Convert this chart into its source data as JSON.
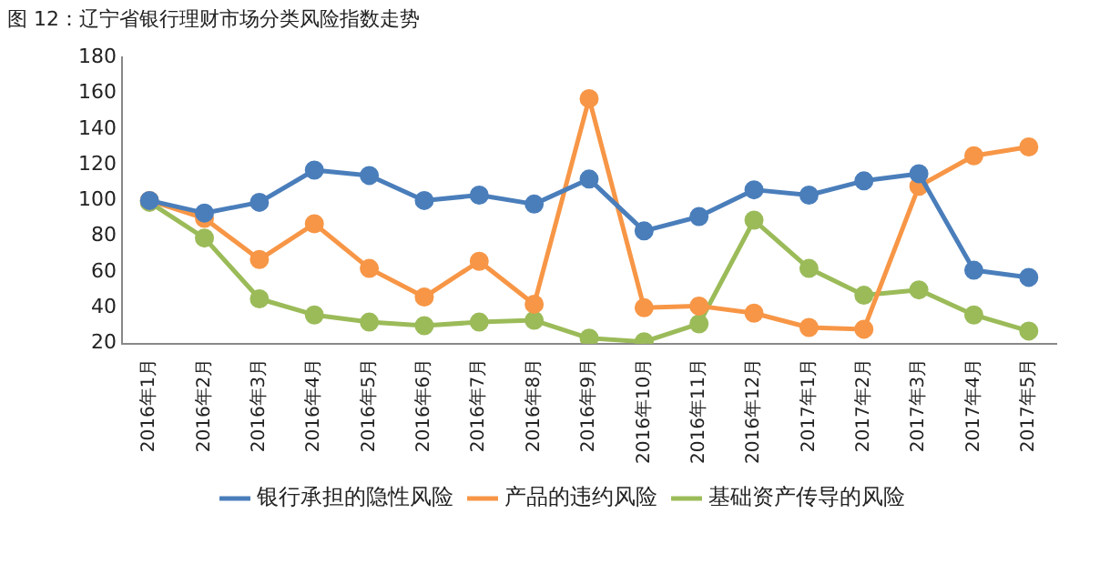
{
  "chart_data": {
    "type": "line",
    "title": "图 12：辽宁省银行理财市场分类风险指数走势",
    "categories": [
      "2016年1月",
      "2016年2月",
      "2016年3月",
      "2016年4月",
      "2016年5月",
      "2016年6月",
      "2016年7月",
      "2016年8月",
      "2016年9月",
      "2016年10月",
      "2016年11月",
      "2016年12月",
      "2017年1月",
      "2017年2月",
      "2017年3月",
      "2017年4月",
      "2017年5月"
    ],
    "series": [
      {
        "name": "银行承担的隐性风险",
        "color": "#4a7ebb",
        "values": [
          100,
          93,
          99,
          117,
          114,
          100,
          103,
          98,
          112,
          83,
          91,
          106,
          103,
          111,
          115,
          61,
          57
        ]
      },
      {
        "name": "产品的违约风险",
        "color": "#f79646",
        "values": [
          100,
          90,
          67,
          87,
          62,
          46,
          66,
          42,
          157,
          40,
          41,
          37,
          29,
          28,
          108,
          125,
          130
        ]
      },
      {
        "name": "基础资产传导的风险",
        "color": "#9bbb59",
        "values": [
          99,
          79,
          45,
          36,
          32,
          30,
          32,
          33,
          23,
          21,
          31,
          89,
          62,
          47,
          50,
          36,
          27
        ]
      }
    ],
    "ylim": [
      20,
      180
    ],
    "yticks": [
      20,
      40,
      60,
      80,
      100,
      120,
      140,
      160,
      180
    ],
    "grid": false,
    "legend": "bottom",
    "marker": "circle",
    "line_style": "solid"
  }
}
